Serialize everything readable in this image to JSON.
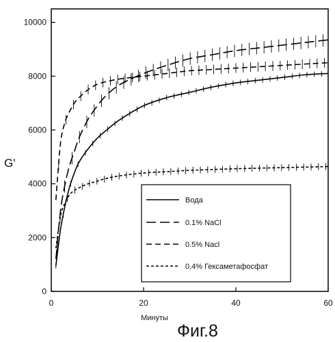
{
  "figure": {
    "caption": "Фиг.8"
  },
  "chart_data": {
    "type": "line",
    "title": "",
    "xlabel": "Минуты",
    "ylabel": "G'",
    "xlim": [
      0,
      60
    ],
    "ylim": [
      0,
      10500
    ],
    "x_ticks": [
      0,
      20,
      40,
      60
    ],
    "y_ticks": [
      0,
      2000,
      4000,
      6000,
      8000,
      10000
    ],
    "grid": false,
    "legend_position": "bottom-right",
    "series": [
      {
        "name": "Вода",
        "style": "solid",
        "error_bars": true,
        "x": [
          1,
          2,
          3,
          4,
          5,
          6,
          8,
          10,
          12,
          15,
          20,
          25,
          30,
          35,
          40,
          45,
          50,
          55,
          60
        ],
        "y": [
          950,
          2300,
          3200,
          3900,
          4400,
          4800,
          5300,
          5700,
          6000,
          6400,
          6900,
          7200,
          7400,
          7600,
          7750,
          7850,
          7950,
          8050,
          8100
        ]
      },
      {
        "name": "0.1% NaCl",
        "style": "long-dash",
        "error_bars": true,
        "x": [
          1,
          2,
          3,
          4,
          5,
          6,
          8,
          10,
          12,
          15,
          20,
          25,
          30,
          35,
          40,
          45,
          50,
          55,
          60
        ],
        "y": [
          1200,
          3000,
          4000,
          4700,
          5200,
          5700,
          6400,
          6900,
          7300,
          7700,
          8100,
          8400,
          8650,
          8800,
          8950,
          9050,
          9150,
          9250,
          9350
        ]
      },
      {
        "name": "0.5% Nacl",
        "style": "dash",
        "error_bars": true,
        "x": [
          1,
          2,
          3,
          4,
          5,
          6,
          8,
          10,
          12,
          15,
          20,
          25,
          30,
          35,
          40,
          45,
          50,
          55,
          60
        ],
        "y": [
          3400,
          5500,
          6300,
          6700,
          7000,
          7200,
          7500,
          7700,
          7800,
          7900,
          8000,
          8100,
          8200,
          8250,
          8300,
          8350,
          8400,
          8450,
          8500
        ]
      },
      {
        "name": "0,4%  Гексаметафосфат",
        "style": "short-dash",
        "error_bars": true,
        "x": [
          1,
          2,
          3,
          4,
          5,
          6,
          8,
          10,
          12,
          15,
          20,
          25,
          30,
          35,
          40,
          45,
          50,
          55,
          60
        ],
        "y": [
          1600,
          2800,
          3300,
          3600,
          3750,
          3850,
          4000,
          4100,
          4200,
          4300,
          4400,
          4450,
          4500,
          4530,
          4560,
          4580,
          4600,
          4620,
          4640
        ]
      }
    ]
  }
}
